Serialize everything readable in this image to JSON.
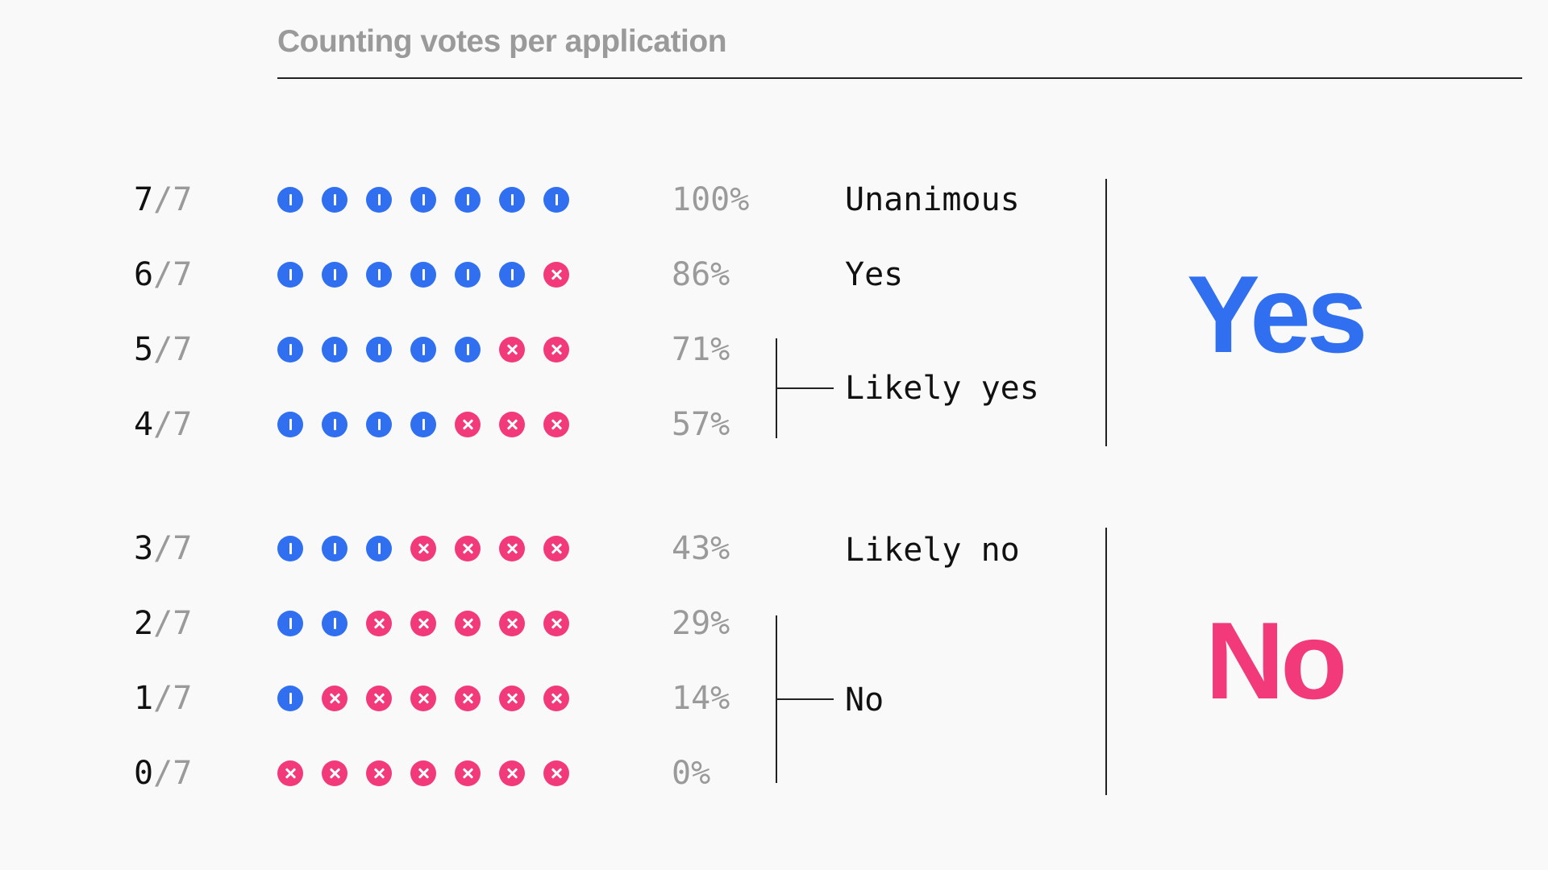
{
  "title": "Counting votes per application",
  "denominator": "7",
  "rows": [
    {
      "yes_votes": 7,
      "label": "7",
      "percent": "100%"
    },
    {
      "yes_votes": 6,
      "label": "6",
      "percent": "86%"
    },
    {
      "yes_votes": 5,
      "label": "5",
      "percent": "71%"
    },
    {
      "yes_votes": 4,
      "label": "4",
      "percent": "57%"
    },
    {
      "yes_votes": 3,
      "label": "3",
      "percent": "43%"
    },
    {
      "yes_votes": 2,
      "label": "2",
      "percent": "29%"
    },
    {
      "yes_votes": 1,
      "label": "1",
      "percent": "14%"
    },
    {
      "yes_votes": 0,
      "label": "0",
      "percent": "0%"
    }
  ],
  "categories": {
    "unanimous": "Unanimous",
    "yes": "Yes",
    "likely_yes": "Likely yes",
    "likely_no": "Likely no",
    "no": "No"
  },
  "outcomes": {
    "yes": "Yes",
    "no": "No"
  },
  "icons": {
    "yes_vote": "yes-vote-icon",
    "no_vote": "no-vote-icon"
  },
  "colors": {
    "yes": "#2f6ff0",
    "no": "#f23a7a",
    "muted_text": "#9a9a9a",
    "text": "#111111",
    "background": "#f9f9f9"
  }
}
